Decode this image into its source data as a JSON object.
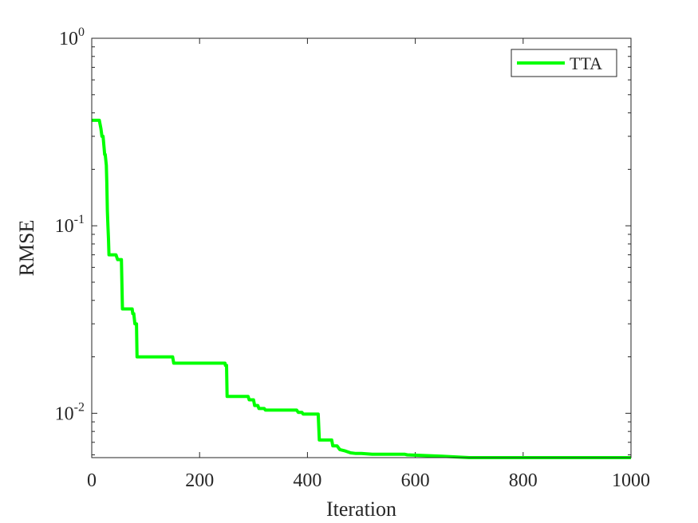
{
  "chart_data": {
    "type": "line",
    "title": "",
    "xlabel": "Iteration",
    "ylabel": "RMSE",
    "xlim": [
      0,
      1000
    ],
    "ylim": [
      0.0058,
      1
    ],
    "yscale": "log",
    "grid": false,
    "legend_position": "top-right",
    "x_ticks": [
      0,
      200,
      400,
      600,
      800,
      1000
    ],
    "x_tick_labels": [
      "0",
      "200",
      "400",
      "600",
      "800",
      "1000"
    ],
    "y_ticks": [
      0.01,
      0.1,
      1
    ],
    "y_tick_labels": [
      {
        "base": "10",
        "exp": "-2"
      },
      {
        "base": "10",
        "exp": "-1"
      },
      {
        "base": "10",
        "exp": "0"
      }
    ],
    "series": [
      {
        "name": "TTA",
        "color": "#00ff00",
        "x": [
          0,
          14,
          17,
          19,
          21,
          23,
          24,
          25,
          27,
          28,
          29,
          30,
          31,
          32,
          45,
          48,
          55,
          57,
          75,
          76,
          78,
          80,
          83,
          84,
          150,
          152,
          247,
          248,
          250,
          251,
          290,
          292,
          300,
          302,
          308,
          310,
          320,
          322,
          380,
          383,
          390,
          392,
          420,
          422,
          445,
          447,
          455,
          460,
          470,
          480,
          490,
          500,
          520,
          580,
          585,
          650,
          700,
          720,
          1000
        ],
        "y": [
          0.365,
          0.365,
          0.33,
          0.3,
          0.3,
          0.26,
          0.24,
          0.24,
          0.21,
          0.17,
          0.12,
          0.1,
          0.085,
          0.07,
          0.07,
          0.066,
          0.066,
          0.036,
          0.036,
          0.034,
          0.034,
          0.03,
          0.03,
          0.02,
          0.02,
          0.0185,
          0.0185,
          0.018,
          0.018,
          0.0123,
          0.0123,
          0.0118,
          0.0118,
          0.011,
          0.011,
          0.0106,
          0.0106,
          0.0104,
          0.0104,
          0.0101,
          0.0101,
          0.0099,
          0.0099,
          0.0072,
          0.0072,
          0.0067,
          0.0067,
          0.0064,
          0.0063,
          0.00615,
          0.0061,
          0.0061,
          0.00605,
          0.00605,
          0.006,
          0.0059,
          0.0058,
          0.0058,
          0.0058
        ]
      }
    ]
  }
}
